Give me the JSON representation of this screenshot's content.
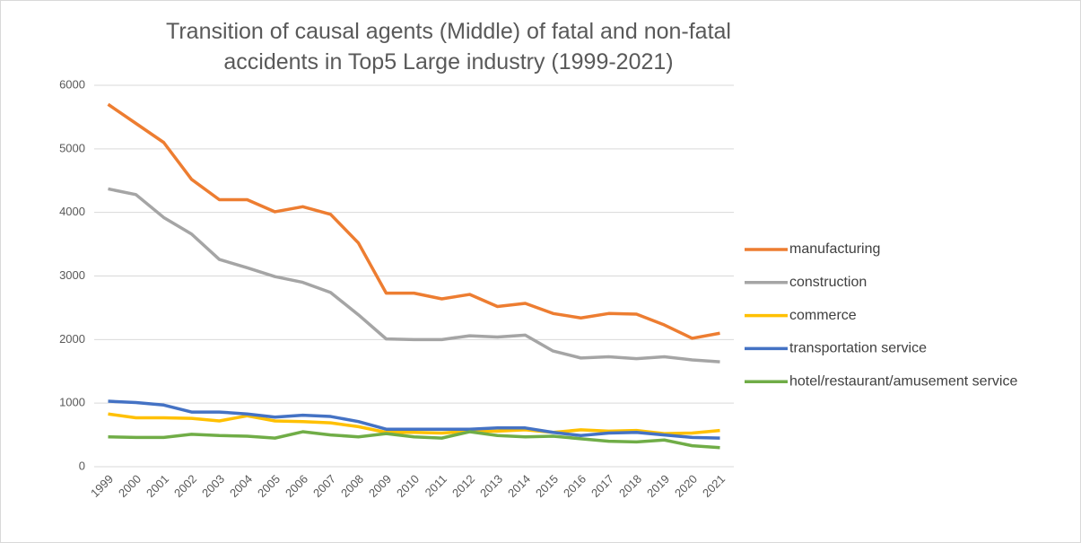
{
  "chart_data": {
    "type": "line",
    "title": "Transition of causal agents (Middle) of fatal and non-fatal accidents in Top5 Large industry (1999-2021)",
    "categories": [
      "1999",
      "2000",
      "2001",
      "2002",
      "2003",
      "2004",
      "2005",
      "2006",
      "2007",
      "2008",
      "2009",
      "2010",
      "2011",
      "2012",
      "2013",
      "2014",
      "2015",
      "2016",
      "2017",
      "2018",
      "2019",
      "2020",
      "2021"
    ],
    "series": [
      {
        "name": "manufacturing",
        "color": "#ed7d31",
        "values": [
          5700,
          5400,
          5100,
          4520,
          4200,
          4200,
          4010,
          4090,
          3970,
          3520,
          2730,
          2730,
          2640,
          2710,
          2520,
          2570,
          2410,
          2340,
          2410,
          2400,
          2230,
          2020,
          2100
        ]
      },
      {
        "name": "construction",
        "color": "#a5a5a5",
        "values": [
          4370,
          4280,
          3920,
          3660,
          3260,
          3130,
          2990,
          2900,
          2740,
          2390,
          2010,
          2000,
          2000,
          2060,
          2040,
          2070,
          1820,
          1710,
          1730,
          1700,
          1730,
          1680,
          1650
        ]
      },
      {
        "name": "commerce",
        "color": "#ffc000",
        "values": [
          830,
          770,
          770,
          760,
          720,
          800,
          720,
          710,
          690,
          630,
          540,
          540,
          530,
          560,
          560,
          580,
          540,
          580,
          560,
          570,
          520,
          530,
          570
        ]
      },
      {
        "name": "transportation service",
        "color": "#4472c4",
        "values": [
          1030,
          1010,
          970,
          860,
          860,
          830,
          780,
          810,
          790,
          710,
          590,
          590,
          590,
          590,
          610,
          610,
          540,
          490,
          530,
          540,
          500,
          460,
          450
        ]
      },
      {
        "name": "hotel/restaurant/amusement service",
        "color": "#70ad47",
        "values": [
          470,
          460,
          460,
          510,
          490,
          480,
          450,
          550,
          500,
          470,
          520,
          470,
          450,
          550,
          490,
          470,
          480,
          440,
          400,
          390,
          420,
          330,
          300
        ]
      }
    ],
    "ylim": [
      0,
      6000
    ],
    "yticks": [
      0,
      1000,
      2000,
      3000,
      4000,
      5000,
      6000
    ],
    "grid": true,
    "legend": "right"
  }
}
